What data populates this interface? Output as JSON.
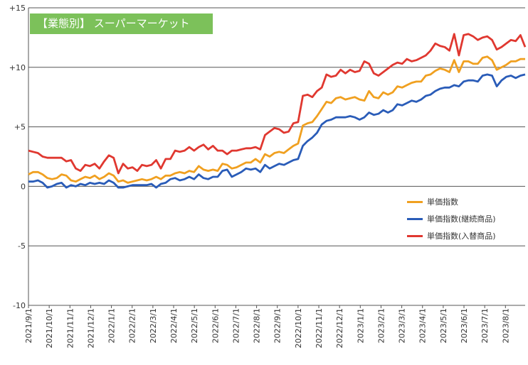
{
  "chart_data": {
    "type": "line",
    "title": "【業態別】 スーパーマーケット",
    "ylim": [
      -10,
      15
    ],
    "y_ticks": [
      "+15",
      "+10",
      "+5",
      "0",
      "-5",
      "-10"
    ],
    "y_tick_values": [
      15,
      10,
      5,
      0,
      -5,
      -10
    ],
    "grid": "horizontal",
    "legend_position": "right",
    "x_tick_labels": [
      "2021/9/1",
      "2021/10/1",
      "2021/11/1",
      "2021/12/1",
      "2022/1/1",
      "2022/2/1",
      "2022/3/1",
      "2022/4/1",
      "2022/5/1",
      "2022/6/1",
      "2022/7/1",
      "2022/8/1",
      "2022/9/1",
      "2022/10/1",
      "2022/11/1",
      "2022/12/1",
      "2023/1/1",
      "2023/2/1",
      "2023/3/1",
      "2023/4/1",
      "2023/5/1",
      "2023/6/1",
      "2023/7/1",
      "2023/8/1"
    ],
    "series": [
      {
        "name": "単価指数",
        "color": "#f0a020",
        "values": [
          1.0,
          1.2,
          1.2,
          1.0,
          0.7,
          0.6,
          0.7,
          1.0,
          0.9,
          0.5,
          0.4,
          0.6,
          0.8,
          0.7,
          0.9,
          0.6,
          0.8,
          1.1,
          0.9,
          0.4,
          0.5,
          0.3,
          0.4,
          0.5,
          0.6,
          0.5,
          0.6,
          0.8,
          0.6,
          0.9,
          0.9,
          1.1,
          1.2,
          1.1,
          1.3,
          1.2,
          1.7,
          1.4,
          1.3,
          1.4,
          1.3,
          1.9,
          1.8,
          1.5,
          1.6,
          1.8,
          2.0,
          2.0,
          2.3,
          2.0,
          2.7,
          2.5,
          2.8,
          2.9,
          2.8,
          3.1,
          3.4,
          3.6,
          5.1,
          5.3,
          5.4,
          5.9,
          6.5,
          7.1,
          7.0,
          7.4,
          7.5,
          7.3,
          7.4,
          7.5,
          7.3,
          7.2,
          8.0,
          7.5,
          7.4,
          7.9,
          7.7,
          7.9,
          8.4,
          8.3,
          8.5,
          8.7,
          8.8,
          8.8,
          9.3,
          9.4,
          9.7,
          9.9,
          9.8,
          9.6,
          10.6,
          9.6,
          10.5,
          10.5,
          10.3,
          10.3,
          10.8,
          10.9,
          10.6,
          9.8,
          10.0,
          10.2,
          10.5,
          10.5,
          10.7,
          10.7
        ]
      },
      {
        "name": "単価指数(継続商品)",
        "color": "#2a5cb8",
        "values": [
          0.4,
          0.4,
          0.5,
          0.3,
          -0.1,
          0.0,
          0.2,
          0.3,
          -0.1,
          0.1,
          0.0,
          0.2,
          0.1,
          0.3,
          0.2,
          0.3,
          0.2,
          0.5,
          0.3,
          -0.1,
          -0.1,
          0.0,
          0.1,
          0.1,
          0.1,
          0.1,
          0.2,
          -0.1,
          0.2,
          0.3,
          0.6,
          0.7,
          0.5,
          0.6,
          0.8,
          0.6,
          1.0,
          0.7,
          0.6,
          0.8,
          0.8,
          1.3,
          1.4,
          0.8,
          1.0,
          1.2,
          1.5,
          1.4,
          1.5,
          1.2,
          1.8,
          1.5,
          1.7,
          1.9,
          1.8,
          2.0,
          2.2,
          2.3,
          3.4,
          3.8,
          4.1,
          4.5,
          5.2,
          5.5,
          5.6,
          5.8,
          5.8,
          5.8,
          5.9,
          5.8,
          5.6,
          5.8,
          6.2,
          6.0,
          6.1,
          6.4,
          6.2,
          6.4,
          6.9,
          6.8,
          7.0,
          7.2,
          7.1,
          7.3,
          7.6,
          7.7,
          8.0,
          8.2,
          8.3,
          8.3,
          8.5,
          8.4,
          8.8,
          8.9,
          8.9,
          8.8,
          9.3,
          9.4,
          9.3,
          8.4,
          8.9,
          9.2,
          9.3,
          9.1,
          9.3,
          9.4
        ]
      },
      {
        "name": "単価指数(入替商品)",
        "color": "#e03830",
        "values": [
          3.0,
          2.9,
          2.8,
          2.5,
          2.4,
          2.4,
          2.4,
          2.4,
          2.1,
          2.2,
          1.5,
          1.3,
          1.8,
          1.7,
          1.9,
          1.5,
          2.1,
          2.6,
          2.4,
          1.1,
          1.9,
          1.5,
          1.6,
          1.3,
          1.8,
          1.7,
          1.8,
          2.2,
          1.5,
          2.3,
          2.3,
          3.0,
          2.9,
          3.0,
          3.3,
          3.0,
          3.3,
          3.5,
          3.1,
          3.4,
          3.0,
          3.0,
          2.7,
          3.0,
          3.0,
          3.1,
          3.2,
          3.2,
          3.3,
          3.1,
          4.3,
          4.6,
          4.9,
          4.8,
          4.5,
          4.6,
          5.3,
          5.4,
          7.6,
          7.7,
          7.5,
          8.0,
          8.3,
          9.4,
          9.2,
          9.3,
          9.8,
          9.5,
          9.8,
          9.6,
          9.7,
          10.5,
          10.3,
          9.5,
          9.3,
          9.6,
          9.9,
          10.2,
          10.4,
          10.3,
          10.7,
          10.5,
          10.6,
          10.8,
          11.0,
          11.4,
          12.0,
          11.8,
          11.7,
          11.4,
          12.8,
          11.0,
          12.7,
          12.8,
          12.6,
          12.3,
          12.5,
          12.6,
          12.3,
          11.5,
          11.7,
          12.0,
          12.3,
          12.2,
          12.7,
          11.7
        ]
      }
    ]
  }
}
